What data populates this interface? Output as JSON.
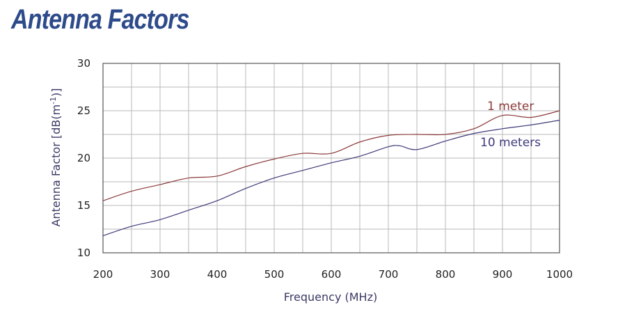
{
  "chart_data": {
    "type": "line",
    "title": "Antenna Factors",
    "xlabel": "Frequency (MHz)",
    "ylabel_main": "Antenna Factor [dB(m",
    "ylabel_sup": "-1",
    "ylabel_end": ")]",
    "xlim": [
      200,
      1000
    ],
    "ylim": [
      10,
      30
    ],
    "xticks": [
      200,
      300,
      400,
      500,
      600,
      700,
      800,
      900,
      1000
    ],
    "yticks": [
      10,
      15,
      20,
      25,
      30
    ],
    "x_grid_step": 50,
    "y_grid_step": 2.5,
    "grid": true,
    "colors": {
      "frame": "#555555",
      "grid": "#b8b8b8",
      "title": "#2d4a8a"
    },
    "series": [
      {
        "name": "1 meter",
        "color": "#8b3a3a",
        "x": [
          200,
          250,
          300,
          350,
          400,
          450,
          500,
          550,
          600,
          650,
          700,
          750,
          800,
          850,
          900,
          950,
          1000
        ],
        "y": [
          15.5,
          16.5,
          17.2,
          17.9,
          18.1,
          19.1,
          19.9,
          20.5,
          20.5,
          21.7,
          22.4,
          22.5,
          22.5,
          23.1,
          24.5,
          24.3,
          25.0
        ]
      },
      {
        "name": "10 meters",
        "color": "#3d3a78",
        "x": [
          200,
          250,
          300,
          350,
          400,
          450,
          500,
          550,
          600,
          650,
          700,
          720,
          750,
          800,
          850,
          900,
          950,
          1000
        ],
        "y": [
          11.8,
          12.8,
          13.5,
          14.5,
          15.5,
          16.8,
          17.9,
          18.7,
          19.5,
          20.2,
          21.2,
          21.3,
          20.9,
          21.8,
          22.6,
          23.1,
          23.5,
          24.0
        ]
      }
    ]
  }
}
